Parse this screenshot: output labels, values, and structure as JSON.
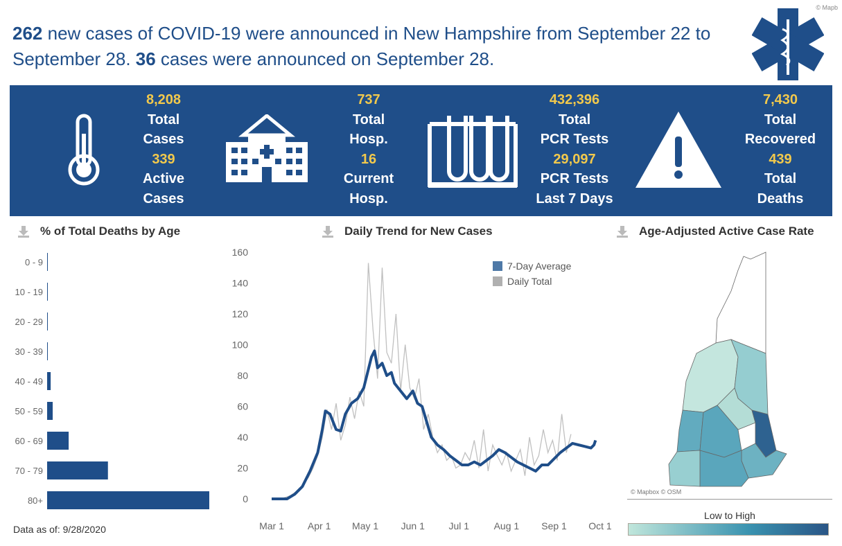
{
  "header": {
    "cases_week": "262",
    "text1": " new cases of COVID-19 were announced in New Hampshire from September 22 to September 28. ",
    "cases_day": "36",
    "text2": " cases were announced on September 28.",
    "attribution": "© Mapb"
  },
  "stats": [
    {
      "icon": "thermometer-icon",
      "v1": "8,208",
      "l1a": "Total",
      "l1b": "Cases",
      "v2": "339",
      "l2a": "Active",
      "l2b": "Cases"
    },
    {
      "icon": "hospital-icon",
      "v1": "737",
      "l1a": "Total",
      "l1b": "Hosp.",
      "v2": "16",
      "l2a": "Current",
      "l2b": "Hosp."
    },
    {
      "icon": "test-tubes-icon",
      "v1": "432,396",
      "l1a": "Total",
      "l1b": "PCR Tests",
      "v2": "29,097",
      "l2a": "PCR Tests",
      "l2b": "Last 7 Days"
    },
    {
      "icon": "warning-icon",
      "v1": "7,430",
      "l1a": "Total",
      "l1b": "Recovered",
      "v2": "439",
      "l2a": "Total",
      "l2b": "Deaths"
    }
  ],
  "colors": {
    "brand": "#1f4e89",
    "accent": "#f2c94c",
    "daily": "#c0c0c0",
    "scale_low": "#c0e6db",
    "scale_mid": "#3a93b0",
    "scale_high": "#2a5586"
  },
  "footer": {
    "data_as_of": "Data as of: 9/28/2020"
  },
  "chart_data": [
    {
      "type": "bar",
      "title": "% of Total Deaths by Age",
      "orientation": "horizontal",
      "categories": [
        "0 - 9",
        "10 - 19",
        "20 - 29",
        "30 - 39",
        "40 - 49",
        "50 - 59",
        "60 - 69",
        "70 - 79",
        "80+"
      ],
      "values": [
        0.2,
        0.2,
        0.2,
        0.2,
        1.4,
        2.2,
        8.5,
        24,
        64
      ]
    },
    {
      "type": "line",
      "title": "Daily Trend for New Cases",
      "ylim": [
        0,
        160
      ],
      "yticks": [
        "0",
        "20",
        "40",
        "60",
        "80",
        "100",
        "120",
        "140",
        "160"
      ],
      "xticks": [
        "Mar 1",
        "Apr 1",
        "May 1",
        "Jun 1",
        "Jul 1",
        "Aug 1",
        "Sep 1",
        "Oct 1"
      ],
      "series": [
        {
          "name": "7-Day Average",
          "color": "#1f4e89",
          "x_days_since_mar1": [
            0,
            10,
            15,
            20,
            25,
            30,
            33,
            35,
            38,
            42,
            45,
            48,
            52,
            56,
            60,
            62,
            65,
            67,
            69,
            72,
            75,
            78,
            80,
            84,
            88,
            92,
            95,
            98,
            101,
            104,
            108,
            112,
            116,
            120,
            124,
            128,
            132,
            136,
            140,
            144,
            148,
            152,
            156,
            160,
            164,
            168,
            172,
            176,
            180,
            184,
            188,
            192,
            196,
            200,
            204,
            208,
            210,
            211
          ],
          "values": [
            0,
            0,
            3,
            8,
            18,
            30,
            45,
            57,
            55,
            45,
            44,
            55,
            62,
            65,
            72,
            80,
            92,
            96,
            85,
            88,
            80,
            82,
            75,
            70,
            65,
            70,
            62,
            60,
            50,
            40,
            35,
            32,
            28,
            25,
            22,
            22,
            24,
            22,
            25,
            28,
            32,
            30,
            27,
            24,
            22,
            20,
            18,
            22,
            22,
            26,
            30,
            33,
            36,
            35,
            34,
            33,
            35,
            38
          ]
        },
        {
          "name": "Daily Total",
          "color": "#c0c0c0",
          "step_days": 3,
          "values": [
            0,
            0,
            0,
            1,
            2,
            4,
            6,
            10,
            14,
            20,
            28,
            40,
            58,
            45,
            62,
            38,
            48,
            66,
            52,
            70,
            60,
            153,
            110,
            78,
            150,
            95,
            88,
            120,
            70,
            100,
            72,
            65,
            78,
            45,
            55,
            40,
            30,
            35,
            25,
            28,
            20,
            22,
            30,
            25,
            38,
            20,
            45,
            18,
            35,
            28,
            22,
            30,
            18,
            25,
            32,
            15,
            40,
            22,
            28,
            45,
            30,
            38,
            25,
            55,
            30,
            42
          ]
        }
      ]
    },
    {
      "type": "map",
      "title": "Age-Adjusted Active Case Rate",
      "legend": "Low to High",
      "attribution": "© Mapbox © OSM"
    }
  ]
}
